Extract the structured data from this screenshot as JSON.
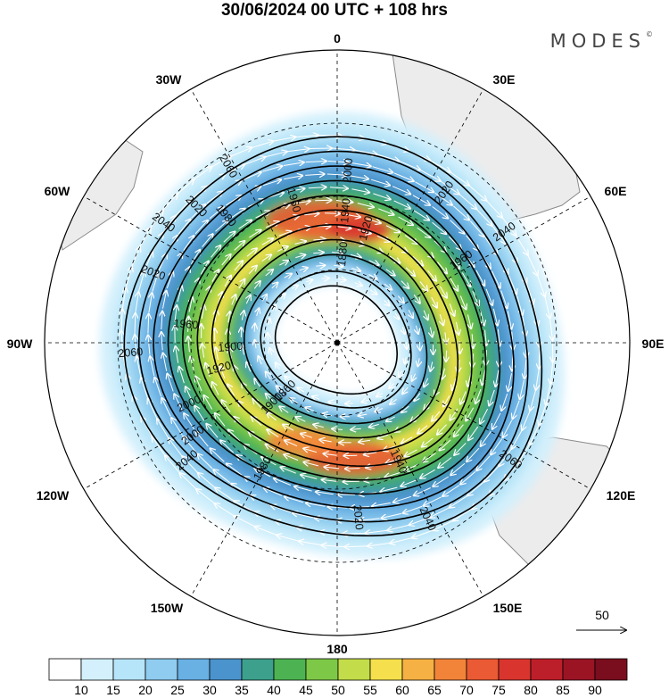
{
  "title": "30/06/2024  00 UTC  + 108 hrs",
  "brand": "MODES",
  "brand_mark": "©",
  "longitude_labels": {
    "lon_0": "0",
    "lon_30e": "30E",
    "lon_60e": "60E",
    "lon_90e": "90E",
    "lon_120e": "120E",
    "lon_150e": "150E",
    "lon_180": "180",
    "lon_150w": "150W",
    "lon_120w": "120W",
    "lon_90w": "90W",
    "lon_60w": "60W",
    "lon_30w": "30W"
  },
  "contour_labels": [
    "2040",
    "2020",
    "2000",
    "1980",
    "1960",
    "1940",
    "1920",
    "1900",
    "1880",
    "1860",
    "1960",
    "2060",
    "2020",
    "2040",
    "1940",
    "1900",
    "1920",
    "2000",
    "1980",
    "2040",
    "2060",
    "2000",
    "2020",
    "1960",
    "2040",
    "2020",
    "2060"
  ],
  "reference_vector": {
    "label": "50"
  },
  "colorbar": {
    "ticks": [
      "10",
      "15",
      "20",
      "25",
      "30",
      "35",
      "40",
      "45",
      "50",
      "55",
      "60",
      "65",
      "70",
      "75",
      "80",
      "85",
      "90"
    ],
    "colors": [
      "#ffffff",
      "#d3f0fc",
      "#b6e4f8",
      "#8fccef",
      "#69b0e3",
      "#4b93cc",
      "#3ca08c",
      "#4db352",
      "#7ec848",
      "#c3dc4a",
      "#f5df4d",
      "#f5b143",
      "#f2843a",
      "#ea5a34",
      "#d9352e",
      "#bd1f2a",
      "#9a1424",
      "#7a0e1e"
    ]
  },
  "colors": {
    "land": "#ececec",
    "coast": "#8a8a8a",
    "grid": "#000000",
    "contour": "#000000",
    "vector": "#ffffff"
  }
}
